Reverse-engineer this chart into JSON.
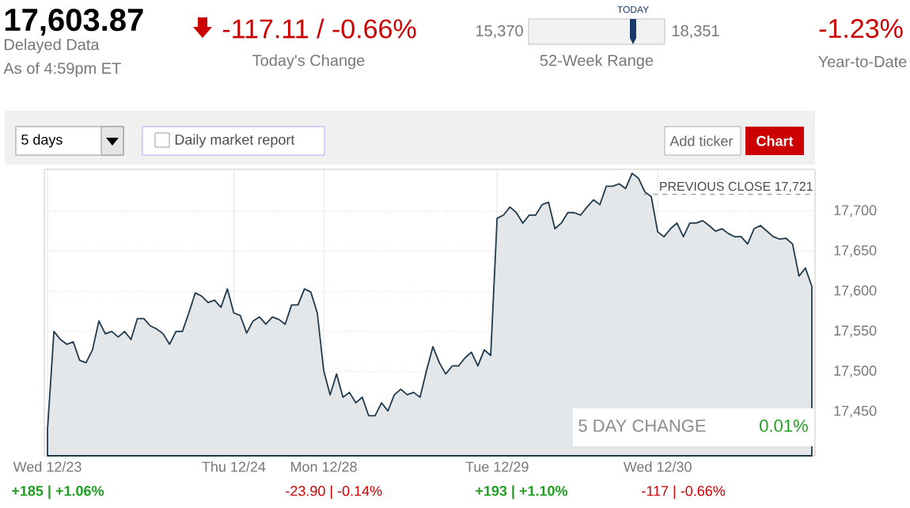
{
  "chart_data": {
    "type": "area",
    "categories": [
      "Wed 12/23",
      null,
      null,
      null,
      null,
      null,
      null,
      null,
      null,
      null,
      null,
      null,
      null,
      null,
      null,
      null,
      null,
      null,
      null,
      null,
      null,
      null,
      null,
      null,
      null,
      null,
      null,
      null,
      null,
      "Thu 12/24",
      null,
      null,
      null,
      null,
      null,
      null,
      null,
      null,
      null,
      null,
      null,
      null,
      null,
      "Mon 12/28",
      null,
      null,
      null,
      null,
      null,
      null,
      null,
      null,
      null,
      null,
      null,
      null,
      null,
      null,
      null,
      null,
      null,
      null,
      null,
      null,
      null,
      null,
      null,
      null,
      null,
      null,
      "Tue 12/29",
      null,
      null,
      null,
      null,
      null,
      null,
      null,
      null,
      null,
      null,
      null,
      null,
      null,
      null,
      null,
      null,
      null,
      null,
      null,
      null,
      null,
      null,
      null,
      null,
      "Wed 12/30",
      null,
      null,
      null,
      null,
      null,
      null,
      null,
      null,
      null,
      null,
      null,
      null,
      null,
      null,
      null,
      null,
      null,
      null,
      null,
      null,
      null,
      null,
      null,
      null
    ],
    "series": [
      {
        "color": "#1f3a4d",
        "values": [
          17428,
          17550,
          17540,
          17534,
          17537,
          17514,
          17511,
          17527,
          17563,
          17547,
          17550,
          17543,
          17550,
          17540,
          17566,
          17566,
          17557,
          17553,
          17547,
          17534,
          17550,
          17550,
          17573,
          17598,
          17594,
          17586,
          17589,
          17580,
          17603,
          17573,
          17570,
          17548,
          17563,
          17568,
          17559,
          17568,
          17565,
          17559,
          17583,
          17583,
          17603,
          17599,
          17573,
          17501,
          17471,
          17497,
          17468,
          17474,
          17461,
          17468,
          17445,
          17445,
          17461,
          17451,
          17471,
          17478,
          17471,
          17474,
          17468,
          17501,
          17531,
          17511,
          17497,
          17507,
          17507,
          17517,
          17524,
          17507,
          17527,
          17520,
          17691,
          17695,
          17705,
          17698,
          17685,
          17695,
          17695,
          17708,
          17711,
          17678,
          17685,
          17698,
          17698,
          17695,
          17705,
          17714,
          17708,
          17731,
          17731,
          17734,
          17728,
          17747,
          17741,
          17724,
          17718,
          17674,
          17668,
          17678,
          17685,
          17668,
          17685,
          17685,
          17688,
          17682,
          17675,
          17678,
          17672,
          17668,
          17668,
          17659,
          17678,
          17682,
          17675,
          17668,
          17665,
          17666,
          17659,
          17619,
          17629,
          17606
        ]
      }
    ],
    "ylim": [
      17395,
      17752
    ],
    "yticks": [
      {
        "value": 17450,
        "label": "17,450"
      },
      {
        "value": 17500,
        "label": "17,500"
      },
      {
        "value": 17550,
        "label": "17,550"
      },
      {
        "value": 17600,
        "label": "17,600"
      },
      {
        "value": 17650,
        "label": "17,650"
      },
      {
        "value": 17700,
        "label": "17,700"
      }
    ],
    "grid": true,
    "ref_lines": [
      {
        "axis": "y",
        "value": 17721,
        "label": "PREVIOUS CLOSE 17,721",
        "line_style": "dashed"
      }
    ],
    "annotations": [
      "17,603.87",
      "Delayed Data",
      "As of 4:59pm ET",
      "-117.11 / -0.66%",
      "Today's Change",
      "15,370",
      "TODAY",
      "18,351",
      "52-Week Range",
      "-1.23%",
      "Year-to-Date",
      "5 days",
      "Daily market report",
      "Add ticker",
      "Chart",
      "5 DAY CHANGE",
      "0.01%",
      "+185 | +1.06%",
      "-23.90 | -0.14%",
      "+193 | +1.10%",
      "-117 | -0.66%"
    ]
  }
}
